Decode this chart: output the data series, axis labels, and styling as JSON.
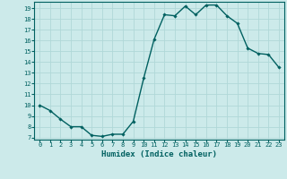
{
  "x": [
    0,
    1,
    2,
    3,
    4,
    5,
    6,
    7,
    8,
    9,
    10,
    11,
    12,
    13,
    14,
    15,
    16,
    17,
    18,
    19,
    20,
    21,
    22,
    23
  ],
  "y": [
    10,
    9.5,
    8.7,
    8.0,
    8.0,
    7.2,
    7.1,
    7.3,
    7.3,
    8.5,
    12.5,
    16.1,
    18.4,
    18.3,
    19.2,
    18.4,
    19.3,
    19.3,
    18.3,
    17.6,
    15.3,
    14.8,
    14.7,
    13.5
  ],
  "line_color": "#006060",
  "marker": "D",
  "marker_size": 1.8,
  "bg_color": "#cceaea",
  "grid_color": "#b0d8d8",
  "xlabel": "Humidex (Indice chaleur)",
  "xlim": [
    -0.5,
    23.5
  ],
  "ylim": [
    6.8,
    19.6
  ],
  "yticks": [
    7,
    8,
    9,
    10,
    11,
    12,
    13,
    14,
    15,
    16,
    17,
    18,
    19
  ],
  "xticks": [
    0,
    1,
    2,
    3,
    4,
    5,
    6,
    7,
    8,
    9,
    10,
    11,
    12,
    13,
    14,
    15,
    16,
    17,
    18,
    19,
    20,
    21,
    22,
    23
  ],
  "tick_fontsize": 5.0,
  "label_fontsize": 6.5,
  "line_width": 1.0
}
